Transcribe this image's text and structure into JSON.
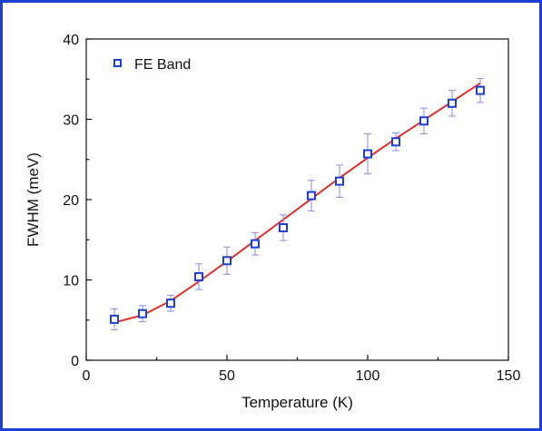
{
  "chart_data": {
    "type": "scatter",
    "xlabel": "Temperature (K)",
    "ylabel": "FWHM (meV)",
    "xlim": [
      0,
      150
    ],
    "ylim": [
      0,
      40
    ],
    "xticks": [
      0,
      50,
      100,
      150
    ],
    "yticks": [
      0,
      10,
      20,
      30,
      40
    ],
    "grid": false,
    "legend": {
      "placement": "top-left"
    },
    "series": [
      {
        "name": "FE Band",
        "marker": "open-square",
        "color": "#1d3fd6",
        "x": [
          10,
          20,
          30,
          40,
          50,
          60,
          70,
          80,
          90,
          100,
          110,
          120,
          130,
          140
        ],
        "y": [
          5.1,
          5.8,
          7.1,
          10.4,
          12.4,
          14.5,
          16.5,
          20.5,
          22.3,
          25.7,
          27.2,
          29.8,
          32.0,
          33.6
        ],
        "yerr": [
          1.3,
          1.0,
          1.0,
          1.6,
          1.7,
          1.4,
          1.6,
          1.9,
          2.0,
          2.5,
          1.1,
          1.6,
          1.6,
          1.5
        ]
      },
      {
        "name": "",
        "type": "line",
        "color": "#e0302a",
        "x": [
          10,
          20,
          30,
          40,
          50,
          60,
          70,
          80,
          90,
          100,
          110,
          120,
          130,
          140
        ],
        "y": [
          4.7,
          5.6,
          7.4,
          9.8,
          12.3,
          14.9,
          17.5,
          20.1,
          22.7,
          25.2,
          27.6,
          29.9,
          32.2,
          34.5
        ]
      }
    ]
  }
}
